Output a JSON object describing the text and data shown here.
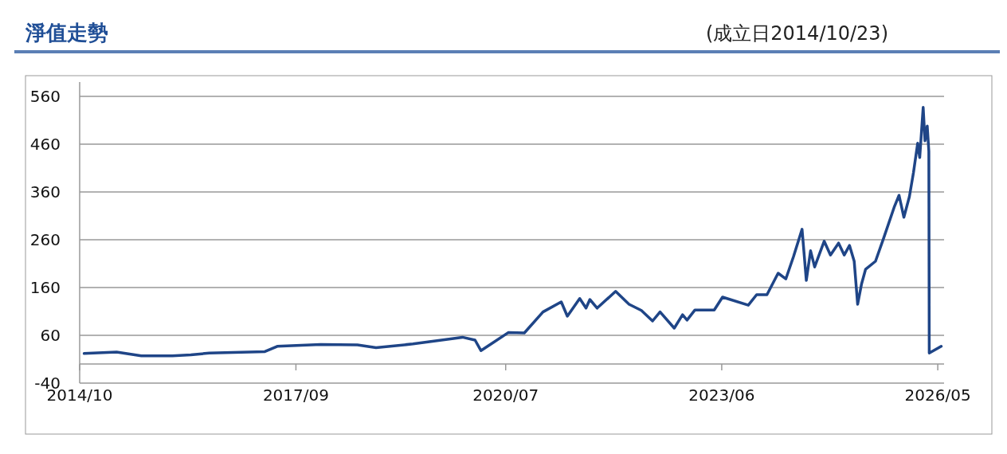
{
  "chart_data": {
    "type": "line",
    "title": "淨值走勢",
    "subtitle": "(成立日2014/10/23)",
    "x": [
      "2014-10-23",
      "2015-04",
      "2015-08",
      "2016-01",
      "2016-04",
      "2016-07",
      "2017-04",
      "2017-06",
      "2018-01",
      "2018-07",
      "2018-10",
      "2019-04",
      "2019-12",
      "2020-02",
      "2020-03",
      "2020-05",
      "2020-07-15",
      "2020-10",
      "2021-01",
      "2021-04",
      "2021-05",
      "2021-07",
      "2021-08-01",
      "2021-08-20",
      "2021-09-25",
      "2021-12-25",
      "2022-03",
      "2022-05",
      "2022-06-25",
      "2022-08",
      "2022-10-10",
      "2022-11-20",
      "2022-12-12",
      "2023-01-20",
      "2023-04-25",
      "2023-06-05",
      "2023-10-10",
      "2023-11-20",
      "2024-01-10",
      "2024-03-05",
      "2024-04-12",
      "2024-05-20",
      "2024-07-01",
      "2024-07-22",
      "2024-08-12",
      "2024-09-01",
      "2024-10-18",
      "2024-11-18",
      "2024-12-28",
      "2025-01-25",
      "2025-02-20",
      "2025-03-15",
      "2025-04-01",
      "2025-04-20",
      "2025-05-10",
      "2025-06-28",
      "2025-08-06",
      "2025-09-28",
      "2025-10-22",
      "2025-11-15",
      "2025-12-12",
      "2026-01-01",
      "2026-01-22",
      "2026-02-01",
      "2026-02-18",
      "2026-02-27",
      "2026-03-10",
      "2026-03-18",
      "2026-03-20",
      "2026-05-18"
    ],
    "series": [
      {
        "color": "#1f4587",
        "values": [
          22,
          25,
          17,
          17,
          19,
          23,
          26,
          37,
          41,
          40,
          34,
          42,
          56,
          50,
          28,
          45,
          66,
          65,
          109,
          130,
          100,
          137,
          117,
          135,
          117,
          152,
          125,
          112,
          90,
          109,
          75,
          103,
          92,
          113,
          113,
          140,
          123,
          145,
          145,
          190,
          178,
          225,
          282,
          175,
          237,
          203,
          257,
          228,
          253,
          228,
          248,
          215,
          125,
          167,
          198,
          215,
          262,
          328,
          353,
          307,
          350,
          400,
          462,
          432,
          537,
          467,
          498,
          445,
          23,
          37
        ]
      }
    ],
    "xlim": [
      "2014-10-01",
      "2026-06-01"
    ],
    "xticks": [
      {
        "value": "2014-10-01",
        "label": "2014/10"
      },
      {
        "value": "2017-09-01",
        "label": "2017/09"
      },
      {
        "value": "2020-07-01",
        "label": "2020/07"
      },
      {
        "value": "2023-06-01",
        "label": "2023/06"
      },
      {
        "value": "2026-05-01",
        "label": "2026/05"
      }
    ],
    "ylim": [
      -40,
      590
    ],
    "yticks": [
      -40,
      60,
      160,
      260,
      360,
      460,
      560
    ],
    "grid": "y",
    "marker": "none",
    "line_style": "solid"
  }
}
